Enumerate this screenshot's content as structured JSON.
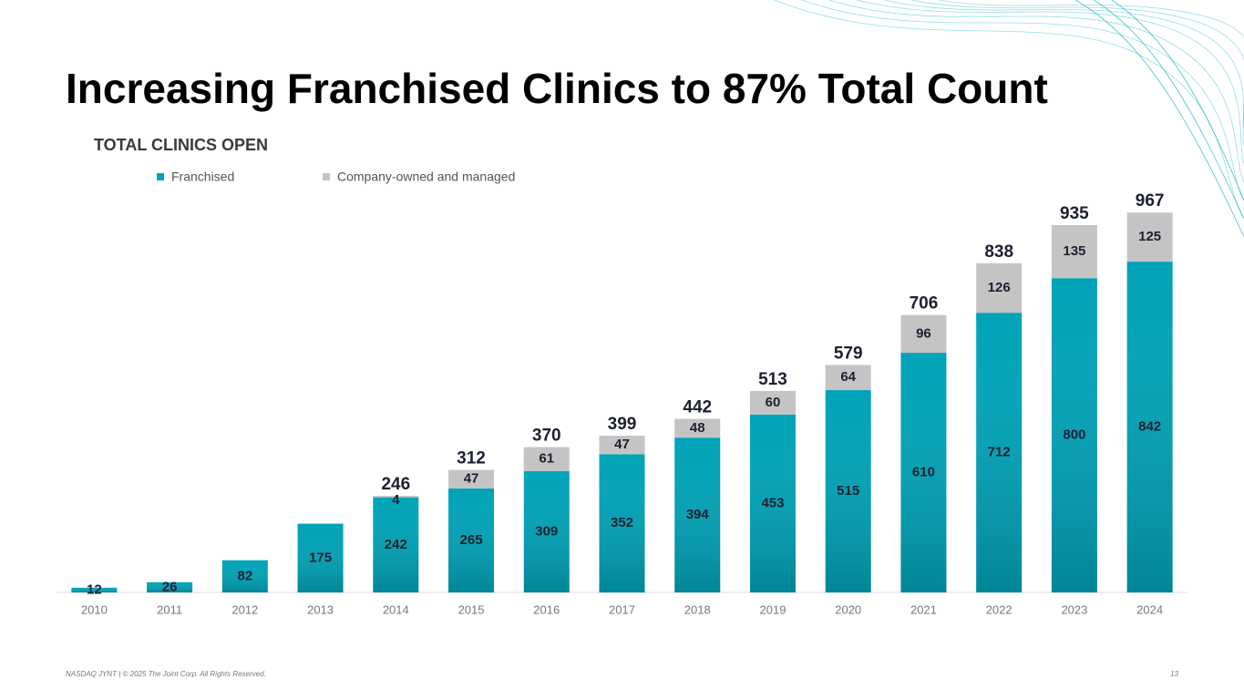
{
  "chart_data": {
    "type": "stacked-bar",
    "title": "Increasing Franchised Clinics to 87% Total Count",
    "subtitle": "TOTAL CLINICS OPEN",
    "categories": [
      "2010",
      "2011",
      "2012",
      "2013",
      "2014",
      "2015",
      "2016",
      "2017",
      "2018",
      "2019",
      "2020",
      "2021",
      "2022",
      "2023",
      "2024"
    ],
    "series": [
      {
        "name": "Franchised",
        "color": "#00a3b8",
        "values": [
          12,
          26,
          82,
          175,
          242,
          265,
          309,
          352,
          394,
          453,
          515,
          610,
          712,
          800,
          842
        ]
      },
      {
        "name": "Company-owned and managed",
        "color": "#c4c4c4",
        "values": [
          null,
          null,
          null,
          null,
          4,
          47,
          61,
          47,
          48,
          60,
          64,
          96,
          126,
          135,
          125
        ]
      }
    ],
    "totals": [
      null,
      null,
      null,
      null,
      246,
      312,
      370,
      399,
      442,
      513,
      579,
      706,
      838,
      935,
      967
    ],
    "ylim": [
      0,
      1000
    ],
    "legend": "top-left"
  },
  "footer": "NASDAQ JYNT  |  © 2025 The Joint Corp. All Rights Reserved.",
  "page_number": "13"
}
